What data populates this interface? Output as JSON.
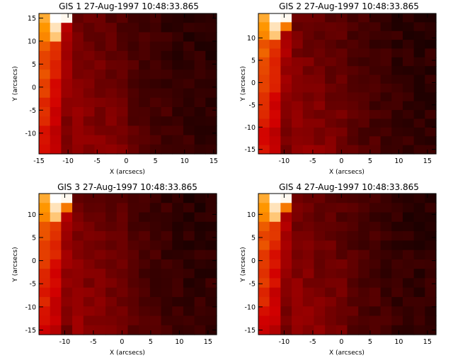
{
  "chart_data": [
    {
      "type": "heatmap",
      "title": "GIS 1 27-Aug-1997 10:48:33.865",
      "xlabel": "X (arcsecs)",
      "ylabel": "Y (arcsecs)",
      "xlim": [
        -15,
        15.5
      ],
      "ylim": [
        -14.5,
        16
      ],
      "xticks": [
        -15,
        -10,
        -5,
        0,
        5,
        10,
        15
      ],
      "yticks": [
        -10,
        -5,
        0,
        5,
        10,
        15
      ],
      "ncols": 16,
      "nrows": 15,
      "colormap": "red-temperature",
      "bright_column": 1,
      "seed": 11,
      "grid": false
    },
    {
      "type": "heatmap",
      "title": "GIS 2 27-Aug-1997 10:48:33.865",
      "xlabel": "X (arcsecs)",
      "ylabel": "Y (arcsecs)",
      "xlim": [
        -14.5,
        16.5
      ],
      "ylim": [
        -16,
        15.5
      ],
      "xticks": [
        -10,
        -5,
        0,
        5,
        10,
        15
      ],
      "yticks": [
        -15,
        -10,
        -5,
        0,
        5,
        10
      ],
      "ncols": 16,
      "nrows": 16,
      "colormap": "red-temperature",
      "bright_column": 1,
      "seed": 23,
      "grid": false
    },
    {
      "type": "heatmap",
      "title": "GIS 3 27-Aug-1997 10:48:33.865",
      "xlabel": "X (arcsecs)",
      "ylabel": "Y (arcsecs)",
      "xlim": [
        -14.5,
        16.5
      ],
      "ylim": [
        -16,
        14.5
      ],
      "xticks": [
        -10,
        -5,
        0,
        5,
        10,
        15
      ],
      "yticks": [
        -15,
        -10,
        -5,
        0,
        5,
        10
      ],
      "ncols": 16,
      "nrows": 15,
      "colormap": "red-temperature",
      "bright_column": 1,
      "seed": 37,
      "grid": false
    },
    {
      "type": "heatmap",
      "title": "GIS 4 27-Aug-1997 10:48:33.865",
      "xlabel": "X (arcsecs)",
      "ylabel": "Y (arcsecs)",
      "xlim": [
        -14.5,
        16.5
      ],
      "ylim": [
        -16,
        14.5
      ],
      "xticks": [
        -10,
        -5,
        0,
        5,
        10,
        15
      ],
      "yticks": [
        -15,
        -10,
        -5,
        0,
        5,
        10
      ],
      "ncols": 16,
      "nrows": 15,
      "colormap": "red-temperature",
      "bright_column": 1,
      "seed": 51,
      "grid": false
    }
  ]
}
